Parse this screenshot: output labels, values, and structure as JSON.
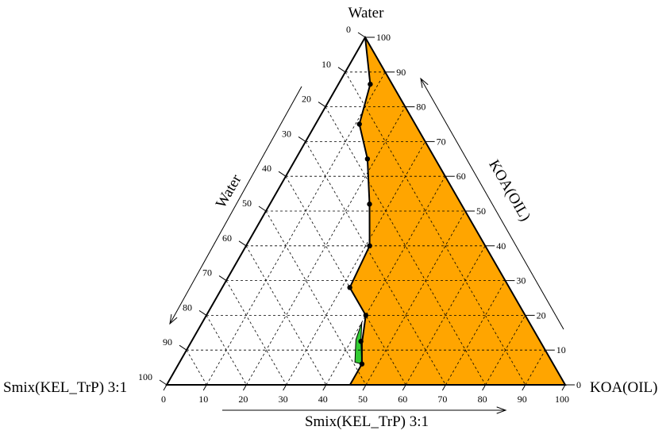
{
  "chart_data": {
    "type": "ternary",
    "vertices": {
      "top": "Water",
      "bottom_left": "Smix(KEL_TrP) 3:1",
      "bottom_right": "KOA(OIL)"
    },
    "axes": {
      "left": {
        "label": "Water",
        "ticks": [
          "0",
          "10",
          "20",
          "30",
          "40",
          "50",
          "60",
          "70",
          "80",
          "90",
          "100"
        ]
      },
      "right": {
        "label": "KOA(OIL)",
        "ticks": [
          "0",
          "10",
          "20",
          "30",
          "40",
          "50",
          "60",
          "70",
          "80",
          "90",
          "100"
        ]
      },
      "bottom": {
        "label": "Smix(KEL_TrP) 3:1",
        "ticks": [
          "0",
          "10",
          "20",
          "30",
          "40",
          "50",
          "60",
          "70",
          "80",
          "90",
          "100"
        ]
      }
    },
    "grid": true,
    "region_colors": {
      "emulsion_region": "#FFA500",
      "gel_region": "#33CC33"
    },
    "boundary_points": [
      {
        "water": 100,
        "oil": 0,
        "smix": 0
      },
      {
        "water": 86.5,
        "oil": 8,
        "smix": 5.5
      },
      {
        "water": 75,
        "oil": 11,
        "smix": 14
      },
      {
        "water": 65,
        "oil": 18,
        "smix": 17
      },
      {
        "water": 52,
        "oil": 25,
        "smix": 23
      },
      {
        "water": 40,
        "oil": 31,
        "smix": 29
      },
      {
        "water": 28,
        "oil": 32,
        "smix": 40
      },
      {
        "water": 20,
        "oil": 40,
        "smix": 40
      },
      {
        "water": 12,
        "oil": 43,
        "smix": 45
      },
      {
        "water": 6,
        "oil": 46,
        "smix": 48
      },
      {
        "water": 0,
        "oil": 46,
        "smix": 54
      }
    ],
    "gel_region": [
      {
        "water": 18,
        "oil": 40,
        "smix": 42
      },
      {
        "water": 12.5,
        "oil": 42.5,
        "smix": 45
      },
      {
        "water": 6,
        "oil": 46,
        "smix": 48
      },
      {
        "water": 6.5,
        "oil": 44,
        "smix": 49.5
      },
      {
        "water": 13,
        "oil": 41,
        "smix": 46
      }
    ],
    "markers": [
      {
        "water": 86.5,
        "oil": 8,
        "smix": 5.5
      },
      {
        "water": 75,
        "oil": 11,
        "smix": 14
      },
      {
        "water": 65,
        "oil": 18,
        "smix": 17
      },
      {
        "water": 52,
        "oil": 25,
        "smix": 23
      },
      {
        "water": 40,
        "oil": 31,
        "smix": 29
      },
      {
        "water": 28,
        "oil": 32,
        "smix": 40
      },
      {
        "water": 20,
        "oil": 40,
        "smix": 40
      },
      {
        "water": 12.5,
        "oil": 42.5,
        "smix": 45
      },
      {
        "water": 6,
        "oil": 46,
        "smix": 48
      }
    ]
  }
}
